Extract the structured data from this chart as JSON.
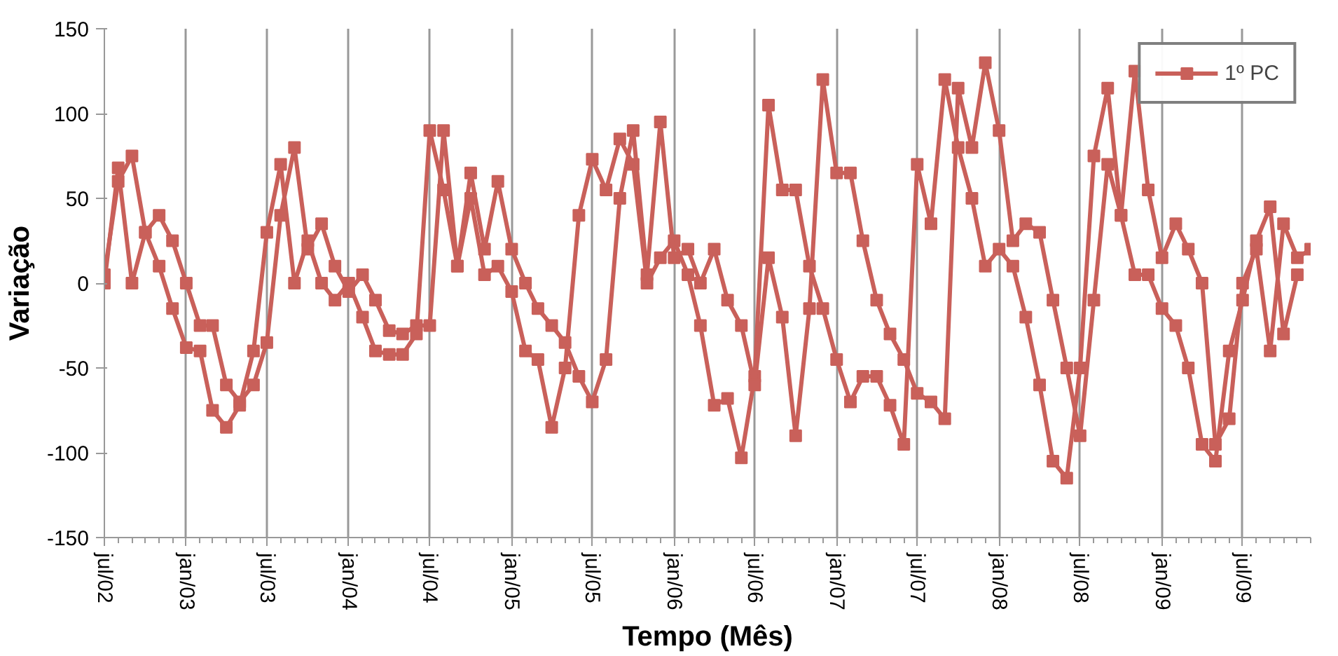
{
  "chart_data": {
    "type": "line",
    "xlabel": "Tempo (Mês)",
    "ylabel": "Variação",
    "x": [
      "2002-07",
      "2002-08",
      "2002-09",
      "2002-10",
      "2002-11",
      "2002-12",
      "2003-01",
      "2003-02",
      "2003-03",
      "2003-04",
      "2003-05",
      "2003-06",
      "2003-07",
      "2003-08",
      "2003-09",
      "2003-10",
      "2003-11",
      "2003-12",
      "2004-01",
      "2004-02",
      "2004-03",
      "2004-04",
      "2004-05",
      "2004-06",
      "2004-07",
      "2004-08",
      "2004-09",
      "2004-10",
      "2004-11",
      "2004-12",
      "2005-01",
      "2005-02",
      "2005-03",
      "2005-04",
      "2005-05",
      "2005-06",
      "2005-07",
      "2005-08",
      "2005-09",
      "2005-10",
      "2005-11",
      "2005-12",
      "2006-01",
      "2006-02",
      "2006-03",
      "2006-04",
      "2006-05",
      "2006-06",
      "2006-07",
      "2006-08",
      "2006-09",
      "2006-10",
      "2006-11",
      "2006-12",
      "2007-01",
      "2007-02",
      "2007-03",
      "2007-04",
      "2007-05",
      "2007-06",
      "2007-07",
      "2007-08",
      "2007-09",
      "2007-10",
      "2007-11",
      "2007-12",
      "2008-01",
      "2008-02",
      "2008-03",
      "2008-04",
      "2008-05",
      "2008-06",
      "2008-07",
      "2008-08",
      "2008-09",
      "2008-10",
      "2008-11",
      "2008-12",
      "2009-01",
      "2009-02",
      "2009-03",
      "2009-04",
      "2009-05",
      "2009-06",
      "2009-07",
      "2009-08",
      "2009-09",
      "2009-10",
      "2009-11",
      "2009-12"
    ],
    "series": [
      {
        "name": "1º PC",
        "color": "#c9605a",
        "values": [
          0,
          68,
          0,
          30,
          10,
          -15,
          -38,
          -40,
          -75,
          -85,
          -72,
          -40,
          30,
          70,
          0,
          25,
          0,
          -10,
          0,
          -20,
          -40,
          -42,
          -42,
          -30,
          90,
          55,
          10,
          50,
          5,
          10,
          -5,
          -40,
          -45,
          -85,
          -50,
          40,
          73,
          55,
          85,
          70,
          0,
          15,
          25,
          5,
          -25,
          -72,
          -68,
          -103,
          -55,
          105,
          55,
          55,
          10,
          -15,
          -45,
          -70,
          -55,
          -55,
          -72,
          -95,
          70,
          35,
          120,
          80,
          50,
          10,
          20,
          10,
          -20,
          -60,
          -105,
          -115,
          -50,
          75,
          115,
          40,
          5,
          5,
          -15,
          -25,
          -50,
          -95,
          -105,
          -40,
          -10,
          25,
          45,
          -30,
          5,
          null
        ]
      },
      {
        "color": "#c9605a",
        "values": [
          5,
          60,
          75,
          30,
          40,
          25,
          0,
          -25,
          -25,
          -60,
          -70,
          -60,
          -35,
          40,
          80,
          20,
          35,
          10,
          -5,
          5,
          -10,
          -28,
          -30,
          -25,
          -25,
          90,
          10,
          65,
          20,
          60,
          20,
          0,
          -15,
          -25,
          -35,
          -55,
          -70,
          -45,
          50,
          90,
          5,
          95,
          15,
          20,
          0,
          20,
          -10,
          -25,
          -60,
          15,
          -20,
          -90,
          -15,
          120,
          65,
          65,
          25,
          -10,
          -30,
          -45,
          -65,
          -70,
          -80,
          115,
          80,
          130,
          90,
          25,
          35,
          30,
          -10,
          -50,
          -90,
          -10,
          70,
          40,
          125,
          55,
          15,
          35,
          20,
          0,
          -95,
          -80,
          0,
          20,
          -40,
          35,
          15,
          20
        ]
      }
    ],
    "xlim": [
      "2002-07",
      "2009-12"
    ],
    "xticks": [
      {
        "value": "2002-07",
        "label": "jul/02"
      },
      {
        "value": "2003-01",
        "label": "jan/03"
      },
      {
        "value": "2003-07",
        "label": "jul/03"
      },
      {
        "value": "2004-01",
        "label": "jan/04"
      },
      {
        "value": "2004-07",
        "label": "jul/04"
      },
      {
        "value": "2005-01",
        "label": "jan/05"
      },
      {
        "value": "2005-07",
        "label": "jul/05"
      },
      {
        "value": "2006-01",
        "label": "jan/06"
      },
      {
        "value": "2006-07",
        "label": "jul/06"
      },
      {
        "value": "2007-01",
        "label": "jan/07"
      },
      {
        "value": "2007-07",
        "label": "jul/07"
      },
      {
        "value": "2008-01",
        "label": "jan/08"
      },
      {
        "value": "2008-07",
        "label": "jul/08"
      },
      {
        "value": "2009-01",
        "label": "jan/09"
      },
      {
        "value": "2009-07",
        "label": "jul/09"
      }
    ],
    "ylim": [
      -150,
      150
    ],
    "yticks": [
      -150,
      -100,
      -50,
      0,
      50,
      100,
      150
    ],
    "grid": "x",
    "legend": "top right",
    "marker": "square",
    "line_style": "solid"
  }
}
